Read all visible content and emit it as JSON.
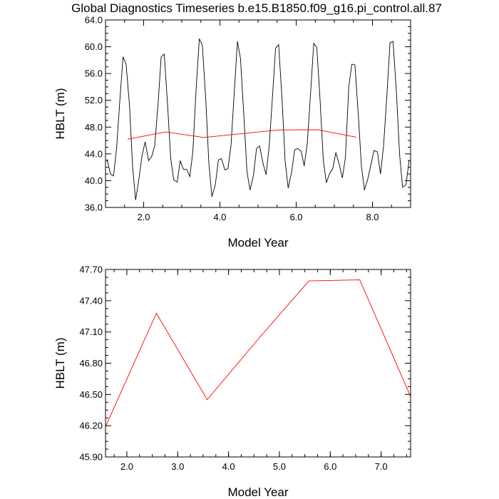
{
  "title": "Global Diagnostics Timeseries b.e15.B1850.f09_g16.pi_control.all.87",
  "colors": {
    "monthly_line": "#000000",
    "annual_line": "#ff0000",
    "background": "#ffffff"
  },
  "chart_data": [
    {
      "type": "line",
      "xlabel": "Model Year",
      "ylabel": "HBLT (m)",
      "xlim": [
        1.0,
        9.0
      ],
      "ylim": [
        36.0,
        64.0
      ],
      "xticks": [
        "2.0",
        "4.0",
        "6.0",
        "8.0"
      ],
      "yticks": [
        "36.0",
        "40.0",
        "44.0",
        "48.0",
        "52.0",
        "56.0",
        "60.0",
        "64.0"
      ],
      "grid": false,
      "series": [
        {
          "color": "#000000",
          "x": [
            1.04,
            1.13,
            1.21,
            1.29,
            1.38,
            1.46,
            1.54,
            1.63,
            1.71,
            1.79,
            1.88,
            1.96,
            2.04,
            2.13,
            2.21,
            2.29,
            2.38,
            2.46,
            2.54,
            2.63,
            2.71,
            2.79,
            2.88,
            2.96,
            3.04,
            3.13,
            3.21,
            3.29,
            3.38,
            3.46,
            3.54,
            3.63,
            3.71,
            3.79,
            3.88,
            3.96,
            4.04,
            4.13,
            4.21,
            4.29,
            4.38,
            4.46,
            4.54,
            4.63,
            4.71,
            4.79,
            4.88,
            4.96,
            5.04,
            5.13,
            5.21,
            5.29,
            5.38,
            5.46,
            5.54,
            5.63,
            5.71,
            5.79,
            5.88,
            5.96,
            6.04,
            6.13,
            6.21,
            6.29,
            6.38,
            6.46,
            6.54,
            6.63,
            6.71,
            6.79,
            6.88,
            6.96,
            7.04,
            7.13,
            7.21,
            7.29,
            7.38,
            7.46,
            7.54,
            7.63,
            7.71,
            7.79,
            7.88,
            7.96,
            8.04,
            8.13,
            8.21,
            8.29,
            8.38,
            8.46,
            8.54,
            8.63,
            8.71,
            8.79,
            8.88,
            8.96
          ],
          "y": [
            43.2,
            41.0,
            40.7,
            44.8,
            52.3,
            58.5,
            57.4,
            51.2,
            42.1,
            37.1,
            40.4,
            43.8,
            45.8,
            43.0,
            43.6,
            45.2,
            51.6,
            58.5,
            58.9,
            51.1,
            43.3,
            40.1,
            39.8,
            43.0,
            41.7,
            41.7,
            40.6,
            44.3,
            54.1,
            61.2,
            60.2,
            52.0,
            42.6,
            37.6,
            39.4,
            43.1,
            43.3,
            41.6,
            41.8,
            45.2,
            53.6,
            60.8,
            58.2,
            49.5,
            41.3,
            38.6,
            40.8,
            44.8,
            45.2,
            42.6,
            40.9,
            45.0,
            52.7,
            59.8,
            60.3,
            52.1,
            42.9,
            38.9,
            41.3,
            44.6,
            44.8,
            44.4,
            42.2,
            45.5,
            53.3,
            60.5,
            59.9,
            51.7,
            43.1,
            39.7,
            41.1,
            41.8,
            44.2,
            42.4,
            40.4,
            43.4,
            54.1,
            57.4,
            57.3,
            49.7,
            42.2,
            38.6,
            40.3,
            42.4,
            44.5,
            44.3,
            41.0,
            45.1,
            52.9,
            60.6,
            60.8,
            53.0,
            44.0,
            39.0,
            39.4,
            43.0
          ]
        },
        {
          "color": "#ff0000",
          "x": [
            1.58,
            2.58,
            3.58,
            4.58,
            5.58,
            6.58,
            7.58
          ],
          "y": [
            46.19,
            47.28,
            46.45,
            47.03,
            47.59,
            47.6,
            46.48
          ]
        }
      ]
    },
    {
      "type": "line",
      "xlabel": "Model Year",
      "ylabel": "HBLT (m)",
      "xlim": [
        1.58,
        7.58
      ],
      "ylim": [
        45.9,
        47.7
      ],
      "xticks": [
        "2.0",
        "3.0",
        "4.0",
        "5.0",
        "6.0",
        "7.0"
      ],
      "yticks": [
        "45.90",
        "46.20",
        "46.50",
        "46.80",
        "47.10",
        "47.40",
        "47.70"
      ],
      "grid": false,
      "series": [
        {
          "color": "#ff0000",
          "x": [
            1.58,
            2.58,
            3.58,
            4.58,
            5.58,
            6.58,
            7.58
          ],
          "y": [
            46.19,
            47.28,
            46.45,
            47.03,
            47.59,
            47.6,
            46.48
          ]
        }
      ]
    }
  ]
}
